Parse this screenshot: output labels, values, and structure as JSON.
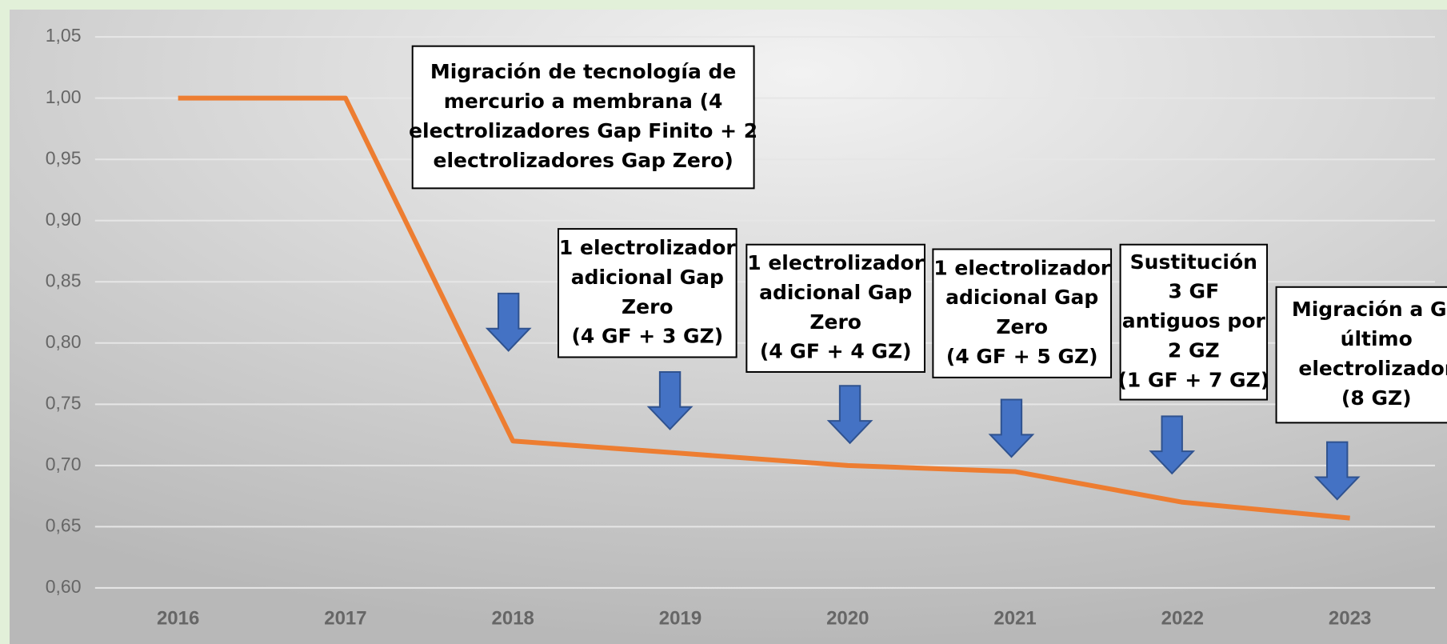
{
  "chart_data": {
    "type": "line",
    "categories": [
      "2016",
      "2017",
      "2018",
      "2019",
      "2020",
      "2021",
      "2022",
      "2023"
    ],
    "series": [
      {
        "color": "#ed7d31",
        "values": [
          1.0,
          1.0,
          0.72,
          0.71,
          0.7,
          0.695,
          0.67,
          0.657
        ]
      }
    ],
    "ylim": [
      0.6,
      1.05
    ],
    "yticks": [
      {
        "value": 0.6,
        "label": "0,60"
      },
      {
        "value": 0.65,
        "label": "0,65"
      },
      {
        "value": 0.7,
        "label": "0,70"
      },
      {
        "value": 0.75,
        "label": "0,75"
      },
      {
        "value": 0.8,
        "label": "0,80"
      },
      {
        "value": 0.85,
        "label": "0,85"
      },
      {
        "value": 0.9,
        "label": "0,90"
      },
      {
        "value": 0.95,
        "label": "0,95"
      },
      {
        "value": 1.0,
        "label": "1,00"
      },
      {
        "value": 1.05,
        "label": "1,05"
      }
    ],
    "grid": true,
    "annotations": [
      {
        "lines": [
          "Migración de tecnología de",
          "mercurio a membrana (4",
          "electrolizadores Gap Finito + 2",
          "electrolizadores Gap Zero)"
        ]
      },
      {
        "lines": [
          "1 electrolizador",
          "adicional Gap",
          "Zero",
          "(4 GF + 3 GZ)"
        ]
      },
      {
        "lines": [
          "1 electrolizador",
          "adicional Gap",
          "Zero",
          "(4 GF + 4 GZ)"
        ]
      },
      {
        "lines": [
          "1 electrolizador",
          "adicional Gap",
          "Zero",
          "(4 GF + 5 GZ)"
        ]
      },
      {
        "lines": [
          "Sustitución",
          "3 GF",
          "antiguos por",
          "2 GZ",
          "(1 GF + 7 GZ)"
        ]
      },
      {
        "lines": [
          "Migración a GZ",
          "último",
          "electrolizador",
          "(8 GZ)"
        ]
      }
    ]
  }
}
